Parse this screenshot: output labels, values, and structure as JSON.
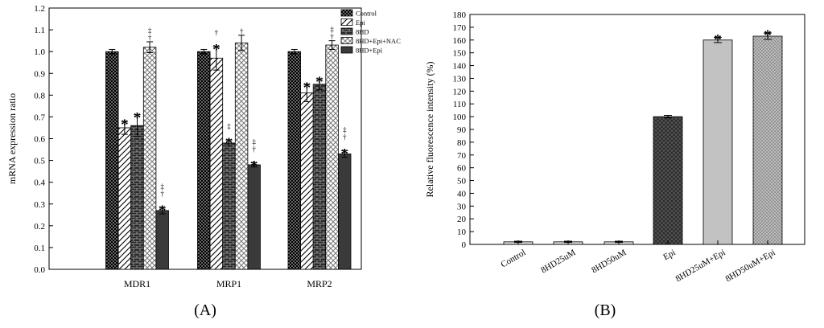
{
  "chart_data": [
    {
      "panel": "A",
      "type": "bar",
      "ylabel": "mRNA expression ratio",
      "ylim": [
        0,
        1.2
      ],
      "yticks": [
        "0.0",
        "0.1",
        "0.2",
        "0.3",
        "0.4",
        "0.5",
        "0.6",
        "0.7",
        "0.8",
        "0.9",
        "1.0",
        "1.1",
        "1.2"
      ],
      "categories": [
        "MDR1",
        "MRP1",
        "MRP2"
      ],
      "legend_position": "top-right",
      "series": [
        {
          "name": "Control",
          "values": [
            1.0,
            1.0,
            1.0
          ],
          "errors": [
            0.01,
            0.01,
            0.01
          ],
          "pattern": "dots",
          "marks": [
            [
              "",
              ""
            ],
            [
              "",
              ""
            ],
            [
              "",
              ""
            ]
          ]
        },
        {
          "name": "Epi",
          "values": [
            0.65,
            0.97,
            0.81
          ],
          "errors": [
            0.03,
            0.055,
            0.04
          ],
          "pattern": "diag",
          "marks": [
            [
              "*",
              ""
            ],
            [
              "*",
              "†"
            ],
            [
              "*",
              ""
            ]
          ]
        },
        {
          "name": "8HD",
          "values": [
            0.66,
            0.58,
            0.85
          ],
          "errors": [
            0.05,
            0.015,
            0.025
          ],
          "pattern": "brick",
          "marks": [
            [
              "*",
              ""
            ],
            [
              "*",
              "‡"
            ],
            [
              "*",
              ""
            ]
          ]
        },
        {
          "name": "8HD+Epi+NAC",
          "values": [
            1.02,
            1.04,
            1.03
          ],
          "errors": [
            0.025,
            0.035,
            0.02
          ],
          "pattern": "cross",
          "marks": [
            [
              "",
              "‡\n†"
            ],
            [
              "",
              "†"
            ],
            [
              "",
              "‡\n†"
            ]
          ]
        },
        {
          "name": "8HD+Epi",
          "values": [
            0.27,
            0.48,
            0.53
          ],
          "errors": [
            0.015,
            0.01,
            0.015
          ],
          "pattern": "solid",
          "marks": [
            [
              "*",
              "‡\n†"
            ],
            [
              "*",
              "‡\n†"
            ],
            [
              "*",
              "‡\n†"
            ]
          ]
        }
      ],
      "panel_label": "(A)"
    },
    {
      "panel": "B",
      "type": "bar",
      "ylabel": "Relative fluorescence intensity (%)",
      "ylim": [
        0,
        180
      ],
      "yticks": [
        "0",
        "10",
        "20",
        "30",
        "40",
        "50",
        "60",
        "70",
        "80",
        "90",
        "100",
        "110",
        "120",
        "130",
        "140",
        "150",
        "160",
        "170",
        "180"
      ],
      "categories": [
        "Control",
        "8HD25uM",
        "8HD50uM",
        "Epi",
        "8HD25uM+Epi",
        "8HD50uM+Epi"
      ],
      "values": [
        2,
        2,
        2,
        100,
        160,
        163
      ],
      "errors": [
        0.5,
        0.5,
        0.5,
        1,
        2,
        2.5
      ],
      "patterns": [
        "none",
        "none",
        "none",
        "diamond",
        "light",
        "dots2"
      ],
      "marks": [
        "",
        "",
        "",
        "",
        "*",
        "*"
      ],
      "panel_label": "(B)"
    }
  ],
  "legend_title_marks": {
    "star": "*",
    "dagger": "†",
    "ddagger": "‡"
  }
}
